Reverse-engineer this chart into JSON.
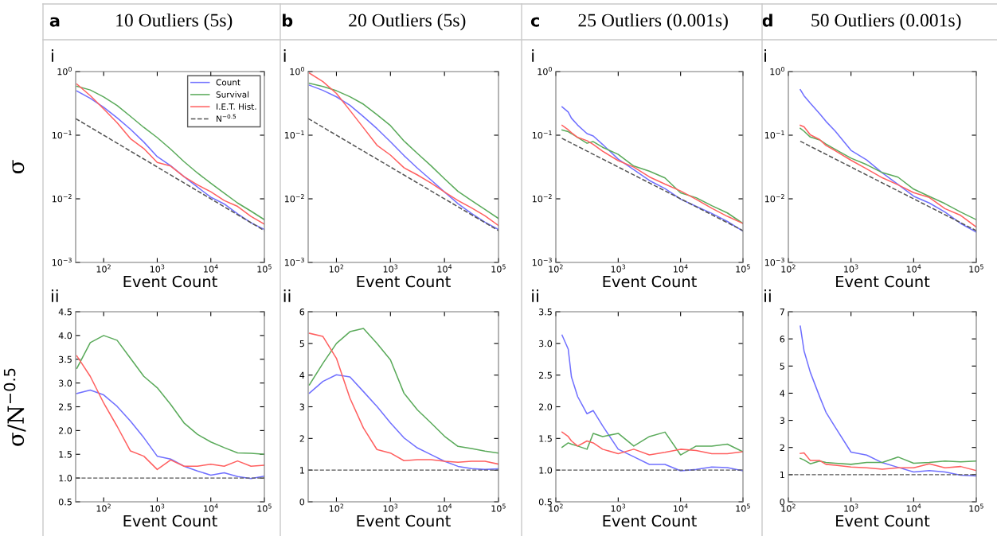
{
  "chart_data": [
    {
      "type": "line",
      "title": "10 Outliers (5s)",
      "annotations": [
        "a",
        "i"
      ],
      "xlabel": "Event Count",
      "ylabel": "σ",
      "log": "xy",
      "legend": "top right",
      "x": [
        31.6,
        56.2,
        100,
        178,
        316,
        562,
        1000,
        1778,
        3162,
        5623,
        10000,
        17783,
        31623,
        56234,
        100000
      ],
      "xlim": [
        30,
        100000
      ],
      "xticks": [
        {
          "value": 100,
          "label": "10$^{2}$"
        },
        {
          "value": 1000,
          "label": "10$^{3}$"
        },
        {
          "value": 10000,
          "label": "10$^{4}$"
        },
        {
          "value": 100000,
          "label": "10$^{5}$"
        }
      ],
      "ylim": [
        0.001,
        1
      ],
      "yticks": [
        {
          "value": 0.001,
          "label": "10$^{−3}$"
        },
        {
          "value": 0.01,
          "label": "10$^{−2}$"
        },
        {
          "value": 0.1,
          "label": "10$^{−1}$"
        },
        {
          "value": 1,
          "label": "10$^{0}$"
        }
      ],
      "series": [
        {
          "name": "Count",
          "color": "#7070ff",
          "values": [
            0.494,
            0.38,
            0.275,
            0.188,
            0.124,
            0.078,
            0.0461,
            0.0332,
            0.0223,
            0.0153,
            0.0106,
            0.0083,
            0.0058,
            0.0042,
            0.0033
          ]
        },
        {
          "name": "Survival",
          "color": "#5aaa5a",
          "values": [
            0.589,
            0.514,
            0.4,
            0.293,
            0.198,
            0.1325,
            0.0917,
            0.0604,
            0.0384,
            0.0255,
            0.0176,
            0.0123,
            0.0086,
            0.0064,
            0.0047
          ]
        },
        {
          "name": "I.E.T. Hist.",
          "color": "#ff6060",
          "values": [
            0.635,
            0.419,
            0.258,
            0.157,
            0.0882,
            0.0616,
            0.0373,
            0.0327,
            0.0223,
            0.0166,
            0.0129,
            0.0094,
            0.0076,
            0.0053,
            0.004
          ]
        },
        {
          "name": "N$^{−0.5}$",
          "color": "#555555",
          "line_style": "dashed",
          "x": [
            30,
            100000
          ],
          "values": [
            0.1826,
            0.00316
          ]
        }
      ]
    },
    {
      "type": "line",
      "title": "20 Outliers (5s)",
      "annotations": [
        "b",
        "i"
      ],
      "xlabel": "Event Count",
      "log": "xy",
      "x": [
        31.6,
        56.2,
        100,
        178,
        316,
        562,
        1000,
        1778,
        3162,
        5623,
        10000,
        17783,
        31623,
        56234,
        100000
      ],
      "xlim": [
        30,
        100000
      ],
      "xticks": [
        {
          "value": 100,
          "label": "10$^{2}$"
        },
        {
          "value": 1000,
          "label": "10$^{3}$"
        },
        {
          "value": 10000,
          "label": "10$^{4}$"
        },
        {
          "value": 100000,
          "label": "10$^{5}$"
        }
      ],
      "ylim": [
        0.001,
        1
      ],
      "yticks": [
        {
          "value": 0.001,
          "label": "10$^{−3}$"
        },
        {
          "value": 0.01,
          "label": "10$^{−2}$"
        },
        {
          "value": 0.1,
          "label": "10$^{−1}$"
        },
        {
          "value": 1,
          "label": "10$^{0}$"
        }
      ],
      "series": [
        {
          "color": "#7070ff",
          "values": [
            0.61,
            0.507,
            0.401,
            0.2955,
            0.1956,
            0.127,
            0.0787,
            0.0479,
            0.0303,
            0.0198,
            0.0128,
            0.0084,
            0.0059,
            0.0043,
            0.0033
          ]
        },
        {
          "color": "#5aaa5a",
          "values": [
            0.656,
            0.583,
            0.5,
            0.403,
            0.307,
            0.211,
            0.1416,
            0.0813,
            0.0516,
            0.0331,
            0.0207,
            0.0131,
            0.0094,
            0.0068,
            0.0049
          ]
        },
        {
          "color": "#ff6060",
          "values": [
            0.946,
            0.696,
            0.453,
            0.245,
            0.131,
            0.0696,
            0.0487,
            0.0308,
            0.0237,
            0.0177,
            0.0128,
            0.0094,
            0.0072,
            0.0054,
            0.0038
          ]
        },
        {
          "color": "#555555",
          "line_style": "dashed",
          "x": [
            30,
            100000
          ],
          "values": [
            0.1826,
            0.00316
          ]
        }
      ]
    },
    {
      "type": "line",
      "title": "25 Outliers (0.001s)",
      "annotations": [
        "c",
        "i"
      ],
      "xlabel": "Event Count",
      "log": "xy",
      "x": [
        126,
        158,
        178,
        224,
        316,
        398,
        562,
        1000,
        1778,
        3162,
        5623,
        10000,
        17783,
        31623,
        56234,
        100000
      ],
      "xlim": [
        100,
        100000
      ],
      "xticks": [
        {
          "value": 100,
          "label": "10$^{2}$"
        },
        {
          "value": 1000,
          "label": "10$^{3}$"
        },
        {
          "value": 10000,
          "label": "10$^{4}$"
        },
        {
          "value": 100000,
          "label": "10$^{5}$"
        }
      ],
      "ylim": [
        0.001,
        1
      ],
      "yticks": [
        {
          "value": 0.001,
          "label": "10$^{−3}$"
        },
        {
          "value": 0.01,
          "label": "10$^{−2}$"
        },
        {
          "value": 0.1,
          "label": "10$^{−1}$"
        },
        {
          "value": 1,
          "label": "10$^{0}$"
        }
      ],
      "series": [
        {
          "color": "#7070ff",
          "values": [
            0.279,
            0.231,
            0.185,
            0.144,
            0.106,
            0.0972,
            0.0717,
            0.042,
            0.0287,
            0.0194,
            0.0145,
            0.0099,
            0.0076,
            0.0059,
            0.0044,
            0.0031
          ]
        },
        {
          "color": "#5aaa5a",
          "values": [
            0.121,
            0.1135,
            0.106,
            0.0922,
            0.0747,
            0.0792,
            0.0646,
            0.0499,
            0.0327,
            0.0272,
            0.0213,
            0.0124,
            0.0104,
            0.0078,
            0.006,
            0.0041
          ]
        },
        {
          "color": "#ff6060",
          "values": [
            0.1426,
            0.1215,
            0.1095,
            0.0922,
            0.082,
            0.0716,
            0.0561,
            0.0398,
            0.0315,
            0.0221,
            0.017,
            0.0133,
            0.0098,
            0.0071,
            0.0053,
            0.0041
          ]
        },
        {
          "color": "#555555",
          "line_style": "dashed",
          "x": [
            125,
            100000
          ],
          "values": [
            0.0894,
            0.00316
          ]
        }
      ]
    },
    {
      "type": "line",
      "title": "50 Outliers (0.001s)",
      "annotations": [
        "d",
        "i"
      ],
      "xlabel": "Event Count",
      "log": "xy",
      "x": [
        155,
        178,
        224,
        316,
        398,
        562,
        1000,
        1778,
        3162,
        5623,
        10000,
        17783,
        31623,
        56234,
        100000
      ],
      "xlim": [
        100,
        100000
      ],
      "xticks": [
        {
          "value": 100,
          "label": "10$^{2}$"
        },
        {
          "value": 1000,
          "label": "10$^{3}$"
        },
        {
          "value": 10000,
          "label": "10$^{4}$"
        },
        {
          "value": 100000,
          "label": "10$^{5}$"
        }
      ],
      "ylim": [
        0.001,
        1
      ],
      "yticks": [
        {
          "value": 0.001,
          "label": "10$^{−3}$"
        },
        {
          "value": 0.01,
          "label": "10$^{−2}$"
        },
        {
          "value": 0.1,
          "label": "10$^{−1}$"
        },
        {
          "value": 1,
          "label": "10$^{0}$"
        }
      ],
      "series": [
        {
          "color": "#7070ff",
          "values": [
            0.52,
            0.417,
            0.319,
            0.2175,
            0.165,
            0.1156,
            0.0578,
            0.0408,
            0.0256,
            0.0169,
            0.011,
            0.0086,
            0.0062,
            0.0041,
            0.003
          ]
        },
        {
          "color": "#5aaa5a",
          "values": [
            0.1286,
            0.1155,
            0.0935,
            0.0843,
            0.0726,
            0.0599,
            0.0436,
            0.0344,
            0.0258,
            0.0219,
            0.0142,
            0.0109,
            0.0084,
            0.0062,
            0.0047
          ]
        },
        {
          "color": "#ff6060",
          "values": [
            0.1431,
            0.135,
            0.1015,
            0.0854,
            0.0691,
            0.057,
            0.0404,
            0.0296,
            0.0214,
            0.0166,
            0.0125,
            0.0105,
            0.007,
            0.0055,
            0.0036
          ]
        },
        {
          "color": "#555555",
          "line_style": "dashed",
          "x": [
            155,
            100000
          ],
          "values": [
            0.0803,
            0.00316
          ]
        }
      ]
    },
    {
      "type": "line",
      "annotations": [
        "ii"
      ],
      "xlabel": "Event Count",
      "ylabel": "σ/N$^{−0.5}$",
      "log": "x",
      "x": [
        31.6,
        56.2,
        100,
        178,
        316,
        562,
        1000,
        1778,
        3162,
        5623,
        10000,
        17783,
        31623,
        56234,
        100000
      ],
      "xlim": [
        30,
        100000
      ],
      "xticks": [
        {
          "value": 100,
          "label": "10$^{2}$"
        },
        {
          "value": 1000,
          "label": "10$^{3}$"
        },
        {
          "value": 10000,
          "label": "10$^{4}$"
        },
        {
          "value": 100000,
          "label": "10$^{5}$"
        }
      ],
      "ylim": [
        0.5,
        4.5
      ],
      "yticks": [
        0.5,
        {
          "value": 1,
          "label": "1.0"
        },
        1.5,
        {
          "value": 2,
          "label": "2.0"
        },
        2.5,
        {
          "value": 3,
          "label": "3.0"
        },
        3.5,
        {
          "value": 4,
          "label": "4.0"
        },
        4.5
      ],
      "ref_lines": [
        {
          "axis": "y",
          "value": 1,
          "color": "#555555",
          "line_style": "dashed"
        }
      ],
      "series": [
        {
          "color": "#7070ff",
          "values": [
            2.78,
            2.85,
            2.75,
            2.51,
            2.2,
            1.85,
            1.46,
            1.4,
            1.25,
            1.15,
            1.06,
            1.11,
            1.03,
            0.99,
            1.04
          ]
        },
        {
          "color": "#5aaa5a",
          "values": [
            3.31,
            3.85,
            4.0,
            3.9,
            3.52,
            3.14,
            2.9,
            2.55,
            2.16,
            1.92,
            1.76,
            1.64,
            1.53,
            1.52,
            1.5
          ]
        },
        {
          "color": "#ff6060",
          "values": [
            3.57,
            3.14,
            2.58,
            2.09,
            1.57,
            1.46,
            1.18,
            1.38,
            1.25,
            1.25,
            1.29,
            1.25,
            1.36,
            1.25,
            1.27
          ]
        }
      ]
    },
    {
      "type": "line",
      "annotations": [
        "ii"
      ],
      "xlabel": "Event Count",
      "log": "x",
      "x": [
        31.6,
        56.2,
        100,
        178,
        316,
        562,
        1000,
        1778,
        3162,
        5623,
        10000,
        17783,
        31623,
        56234,
        100000
      ],
      "xlim": [
        30,
        100000
      ],
      "xticks": [
        {
          "value": 100,
          "label": "10$^{2}$"
        },
        {
          "value": 1000,
          "label": "10$^{3}$"
        },
        {
          "value": 10000,
          "label": "10$^{4}$"
        },
        {
          "value": 100000,
          "label": "10$^{5}$"
        }
      ],
      "ylim": [
        0,
        6
      ],
      "yticks": [
        0,
        1,
        2,
        3,
        4,
        5,
        6
      ],
      "ref_lines": [
        {
          "axis": "y",
          "value": 1,
          "color": "#555555",
          "line_style": "dashed"
        }
      ],
      "series": [
        {
          "color": "#7070ff",
          "values": [
            3.43,
            3.8,
            4.01,
            3.94,
            3.48,
            3.01,
            2.49,
            2.02,
            1.7,
            1.49,
            1.28,
            1.12,
            1.05,
            1.02,
            1.04
          ]
        },
        {
          "color": "#5aaa5a",
          "values": [
            3.69,
            4.37,
            5.0,
            5.37,
            5.47,
            5.0,
            4.48,
            3.43,
            2.9,
            2.49,
            2.07,
            1.75,
            1.68,
            1.6,
            1.54
          ]
        },
        {
          "color": "#ff6060",
          "values": [
            5.32,
            5.22,
            4.53,
            3.27,
            2.33,
            1.65,
            1.54,
            1.3,
            1.33,
            1.33,
            1.28,
            1.25,
            1.28,
            1.28,
            1.19
          ]
        }
      ]
    },
    {
      "type": "line",
      "annotations": [
        "ii"
      ],
      "xlabel": "Event Count",
      "log": "x",
      "x": [
        126,
        158,
        178,
        224,
        316,
        398,
        562,
        1000,
        1778,
        3162,
        5623,
        10000,
        17783,
        31623,
        56234,
        100000
      ],
      "xlim": [
        100,
        100000
      ],
      "xticks": [
        {
          "value": 100,
          "label": "10$^{2}$"
        },
        {
          "value": 1000,
          "label": "10$^{3}$"
        },
        {
          "value": 10000,
          "label": "10$^{4}$"
        },
        {
          "value": 100000,
          "label": "10$^{5}$"
        }
      ],
      "ylim": [
        0.5,
        3.5
      ],
      "yticks": [
        0.5,
        {
          "value": 1,
          "label": "1.0"
        },
        1.5,
        {
          "value": 2,
          "label": "2.0"
        },
        2.5,
        {
          "value": 3,
          "label": "3.0"
        },
        3.5
      ],
      "ref_lines": [
        {
          "axis": "y",
          "value": 1,
          "color": "#555555",
          "line_style": "dashed"
        }
      ],
      "series": [
        {
          "color": "#7070ff",
          "values": [
            3.13,
            2.91,
            2.47,
            2.16,
            1.89,
            1.94,
            1.7,
            1.33,
            1.21,
            1.09,
            1.09,
            0.99,
            1.01,
            1.05,
            1.04,
            0.99
          ]
        },
        {
          "color": "#5aaa5a",
          "values": [
            1.36,
            1.43,
            1.41,
            1.38,
            1.33,
            1.58,
            1.53,
            1.58,
            1.38,
            1.53,
            1.6,
            1.24,
            1.38,
            1.38,
            1.41,
            1.29
          ]
        },
        {
          "color": "#ff6060",
          "values": [
            1.6,
            1.53,
            1.46,
            1.38,
            1.46,
            1.43,
            1.33,
            1.26,
            1.33,
            1.24,
            1.28,
            1.33,
            1.31,
            1.26,
            1.26,
            1.29
          ]
        }
      ]
    },
    {
      "type": "line",
      "annotations": [
        "ii"
      ],
      "xlabel": "Event Count",
      "log": "x",
      "x": [
        155,
        178,
        224,
        316,
        398,
        562,
        1000,
        1778,
        3162,
        5623,
        10000,
        17783,
        31623,
        56234,
        100000
      ],
      "xlim": [
        100,
        100000
      ],
      "xticks": [
        {
          "value": 100,
          "label": "10$^{2}$"
        },
        {
          "value": 1000,
          "label": "10$^{3}$"
        },
        {
          "value": 10000,
          "label": "10$^{4}$"
        },
        {
          "value": 100000,
          "label": "10$^{5}$"
        }
      ],
      "ylim": [
        0,
        7
      ],
      "yticks": [
        0,
        1,
        2,
        3,
        4,
        5,
        6,
        7
      ],
      "ref_lines": [
        {
          "axis": "y",
          "value": 1,
          "color": "#555555",
          "line_style": "dashed"
        }
      ],
      "series": [
        {
          "color": "#7070ff",
          "values": [
            6.47,
            5.56,
            4.77,
            3.87,
            3.3,
            2.74,
            1.83,
            1.72,
            1.44,
            1.27,
            1.1,
            1.15,
            1.1,
            0.98,
            0.95
          ]
        },
        {
          "color": "#5aaa5a",
          "values": [
            1.6,
            1.54,
            1.4,
            1.5,
            1.45,
            1.42,
            1.38,
            1.45,
            1.45,
            1.65,
            1.42,
            1.45,
            1.5,
            1.47,
            1.5
          ]
        },
        {
          "color": "#ff6060",
          "values": [
            1.78,
            1.8,
            1.52,
            1.52,
            1.38,
            1.35,
            1.28,
            1.25,
            1.2,
            1.25,
            1.25,
            1.4,
            1.25,
            1.3,
            1.15
          ]
        }
      ]
    }
  ]
}
